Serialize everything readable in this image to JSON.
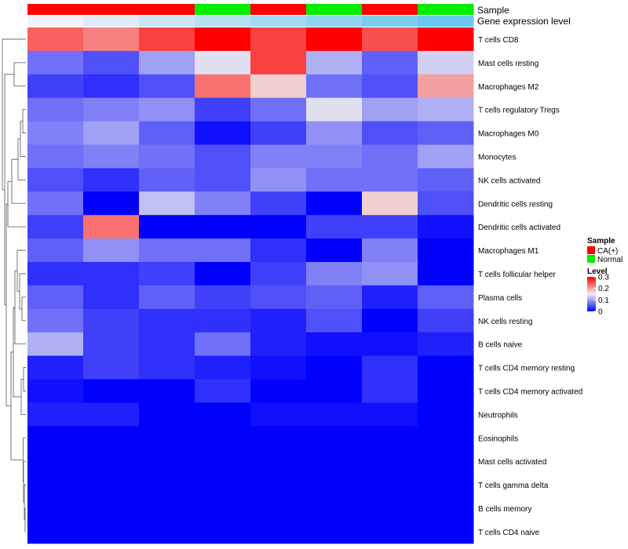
{
  "chart_data": {
    "type": "heatmap",
    "annotation_tracks": [
      {
        "name": "Sample",
        "values": [
          "CA(+)",
          "CA(+)",
          "CA(+)",
          "Normal",
          "CA(+)",
          "Normal",
          "CA(+)",
          "Normal"
        ]
      },
      {
        "name": "Gene expression level",
        "values": [
          0.0,
          0.14,
          0.29,
          0.43,
          0.57,
          0.71,
          0.86,
          1.0
        ]
      }
    ],
    "rows": [
      "T cells CD8",
      "Mast cells resting",
      "Macrophages M2",
      "T cells regulatory  Tregs",
      "Macrophages M0",
      "Monocytes",
      "NK cells activated",
      "Dendritic cells resting",
      "Dendritic cells activated",
      "Macrophages M1",
      "T cells follicular helper",
      "Plasma cells",
      "NK cells resting",
      "B cells naive",
      "T cells CD4 memory resting",
      "T cells CD4 memory activated",
      "Neutrophils",
      "Eosinophils",
      "Mast cells activated",
      "T cells gamma delta",
      "B cells memory",
      "T cells CD4 naive"
    ],
    "columns_count": 8,
    "values": [
      [
        0.24,
        0.22,
        0.26,
        0.3,
        0.26,
        0.3,
        0.25,
        0.3
      ],
      [
        0.07,
        0.05,
        0.1,
        0.14,
        0.26,
        0.11,
        0.06,
        0.13
      ],
      [
        0.04,
        0.03,
        0.05,
        0.23,
        0.17,
        0.07,
        0.05,
        0.2
      ],
      [
        0.07,
        0.08,
        0.09,
        0.04,
        0.07,
        0.14,
        0.1,
        0.11
      ],
      [
        0.08,
        0.1,
        0.06,
        0.01,
        0.04,
        0.09,
        0.05,
        0.06
      ],
      [
        0.07,
        0.08,
        0.07,
        0.05,
        0.08,
        0.08,
        0.07,
        0.1
      ],
      [
        0.05,
        0.03,
        0.06,
        0.05,
        0.09,
        0.07,
        0.07,
        0.06
      ],
      [
        0.07,
        0.0,
        0.12,
        0.08,
        0.04,
        0.0,
        0.17,
        0.05
      ],
      [
        0.04,
        0.23,
        0.0,
        0.0,
        0.0,
        0.04,
        0.04,
        0.01
      ],
      [
        0.06,
        0.09,
        0.07,
        0.07,
        0.03,
        0.0,
        0.08,
        0.0
      ],
      [
        0.03,
        0.03,
        0.04,
        0.0,
        0.04,
        0.08,
        0.09,
        0.0
      ],
      [
        0.06,
        0.03,
        0.06,
        0.04,
        0.05,
        0.06,
        0.02,
        0.06
      ],
      [
        0.07,
        0.04,
        0.03,
        0.03,
        0.02,
        0.05,
        0.0,
        0.04
      ],
      [
        0.11,
        0.04,
        0.03,
        0.07,
        0.02,
        0.01,
        0.01,
        0.02
      ],
      [
        0.02,
        0.04,
        0.03,
        0.02,
        0.01,
        0.0,
        0.03,
        0.0
      ],
      [
        0.01,
        0.0,
        0.0,
        0.03,
        0.0,
        0.0,
        0.03,
        0.0
      ],
      [
        0.02,
        0.02,
        0.0,
        0.0,
        0.01,
        0.01,
        0.01,
        0.0
      ],
      [
        0.0,
        0.0,
        0.0,
        0.0,
        0.0,
        0.0,
        0.0,
        0.0
      ],
      [
        0.0,
        0.0,
        0.0,
        0.0,
        0.0,
        0.0,
        0.0,
        0.0
      ],
      [
        0.0,
        0.0,
        0.0,
        0.0,
        0.0,
        0.0,
        0.0,
        0.0
      ],
      [
        0.0,
        0.0,
        0.0,
        0.0,
        0.0,
        0.0,
        0.0,
        0.0
      ],
      [
        0.0,
        0.0,
        0.0,
        0.0,
        0.0,
        0.0,
        0.0,
        0.0
      ]
    ],
    "color_scale": {
      "min": 0,
      "max": 0.3,
      "low_color": "#0000ff",
      "mid_color": "#f0f0f0",
      "high_color": "#ff0000",
      "mid_value": 0.15
    },
    "legend": {
      "placement": "right",
      "sample_title": "Sample",
      "sample_entries": [
        {
          "label": "CA(+)",
          "color": "#ff0000"
        },
        {
          "label": "Normal",
          "color": "#00ee00"
        }
      ],
      "level_title": "Level",
      "level_ticks": [
        {
          "label": "0.3",
          "value": 0.3
        },
        {
          "label": "0.2",
          "value": 0.2
        },
        {
          "label": "0.1",
          "value": 0.1
        },
        {
          "label": "0",
          "value": 0
        }
      ]
    },
    "gene_expression_color_low": "#f2f2f8",
    "gene_expression_color_high": "#69c8ee",
    "row_dendrogram": true,
    "column_dendrogram": false,
    "grid": false
  }
}
